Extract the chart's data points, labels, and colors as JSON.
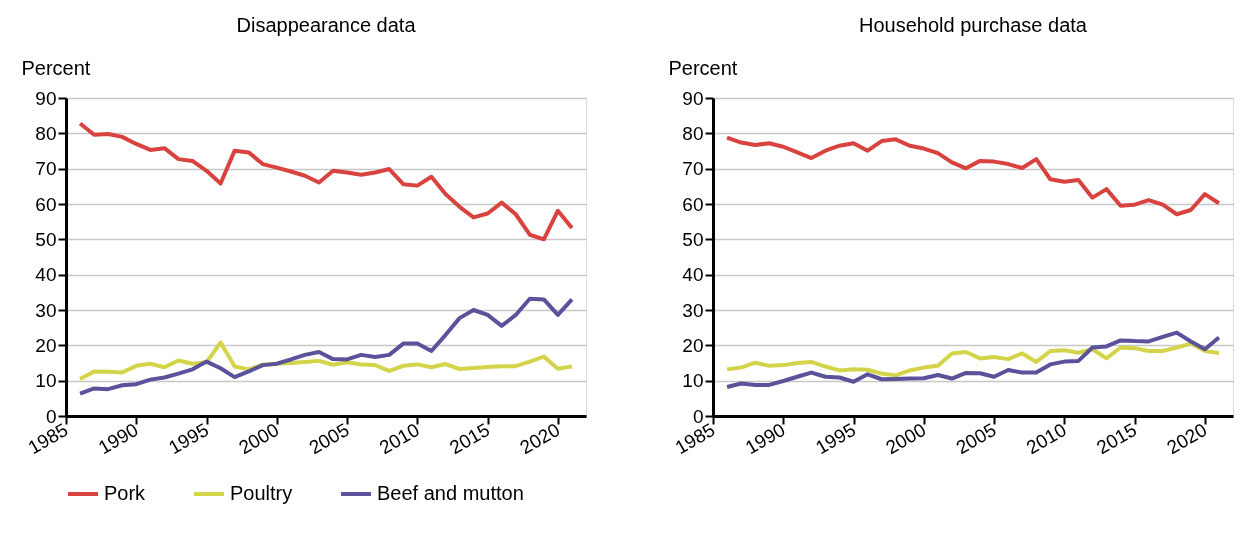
{
  "chart_data": [
    {
      "type": "line",
      "title": "Disappearance data",
      "ylabel": "Percent",
      "legend": "bottom",
      "grid": "y",
      "x": [
        1986,
        1987,
        1988,
        1989,
        1990,
        1991,
        1992,
        1993,
        1994,
        1995,
        1996,
        1997,
        1998,
        1999,
        2000,
        2001,
        2002,
        2003,
        2004,
        2005,
        2006,
        2007,
        2008,
        2009,
        2010,
        2011,
        2012,
        2013,
        2014,
        2015,
        2016,
        2017,
        2018,
        2019,
        2020,
        2021
      ],
      "xlim": [
        1985,
        2022
      ],
      "xticks": [
        1985,
        1990,
        1995,
        2000,
        2005,
        2010,
        2015,
        2020
      ],
      "ylim": [
        0,
        90
      ],
      "yticks": [
        0,
        10,
        20,
        30,
        40,
        50,
        60,
        70,
        80,
        90
      ],
      "series": [
        {
          "name": "Pork",
          "color": "#d9433f",
          "values": [
            82.8,
            79.6,
            79.8,
            79,
            77,
            75.3,
            75.8,
            72.7,
            72.2,
            69.4,
            65.8,
            75.1,
            74.6,
            71.3,
            70.3,
            69.2,
            68,
            66.1,
            69.4,
            68.9,
            68.3,
            68.9,
            69.9,
            65.6,
            65.2,
            67.7,
            62.8,
            59.2,
            56.2,
            57.3,
            60.4,
            57.1,
            51.3,
            50,
            58.1,
            53.2
          ]
        },
        {
          "name": "Poultry",
          "color": "#d4d44a",
          "values": [
            10.5,
            12.6,
            12.5,
            12.3,
            14.2,
            14.8,
            13.8,
            15.7,
            14.8,
            15.2,
            20.8,
            14,
            13.2,
            14.5,
            14.8,
            15,
            15.3,
            15.6,
            14.5,
            15.2,
            14.6,
            14.4,
            12.8,
            14.2,
            14.6,
            13.8,
            14.7,
            13.3,
            13.6,
            13.9,
            14.1,
            14.1,
            15.4,
            16.8,
            13.4,
            14
          ]
        },
        {
          "name": "Beef and mutton",
          "color": "#5a529a",
          "values": [
            6.3,
            7.8,
            7.6,
            8.7,
            9,
            10.3,
            10.9,
            12,
            13.2,
            15.4,
            13.5,
            11,
            12.6,
            14.4,
            14.8,
            16,
            17.3,
            18.1,
            16.1,
            16,
            17.3,
            16.7,
            17.3,
            20.5,
            20.5,
            18.4,
            22.9,
            27.7,
            30,
            28.6,
            25.5,
            28.6,
            33.2,
            33,
            28.6,
            33
          ]
        }
      ]
    },
    {
      "type": "line",
      "title": "Household purchase data",
      "ylabel": "Percent",
      "legend": "bottom",
      "grid": "y",
      "x": [
        1986,
        1987,
        1988,
        1989,
        1990,
        1991,
        1992,
        1993,
        1994,
        1995,
        1996,
        1997,
        1998,
        1999,
        2000,
        2001,
        2002,
        2003,
        2004,
        2005,
        2006,
        2007,
        2008,
        2009,
        2010,
        2011,
        2012,
        2013,
        2014,
        2015,
        2016,
        2017,
        2018,
        2019,
        2020,
        2021
      ],
      "xlim": [
        1985,
        2022
      ],
      "xticks": [
        1985,
        1990,
        1995,
        2000,
        2005,
        2010,
        2015,
        2020
      ],
      "ylim": [
        0,
        90
      ],
      "yticks": [
        0,
        10,
        20,
        30,
        40,
        50,
        60,
        70,
        80,
        90
      ],
      "series": [
        {
          "name": "Pork",
          "color": "#d9433f",
          "values": [
            78.8,
            77.4,
            76.7,
            77.2,
            76.2,
            74.6,
            73,
            75.1,
            76.5,
            77.2,
            75.1,
            77.8,
            78.3,
            76.5,
            75.7,
            74.4,
            71.8,
            70.1,
            72.2,
            72,
            71.3,
            70.2,
            72.7,
            67,
            66.3,
            66.8,
            61.8,
            64.2,
            59.5,
            59.8,
            61.1,
            59.8,
            57.1,
            58.3,
            62.8,
            60.2
          ]
        },
        {
          "name": "Poultry",
          "color": "#d4d44a",
          "values": [
            13.2,
            13.7,
            15.1,
            14.2,
            14.4,
            15,
            15.3,
            14,
            12.9,
            13.2,
            13.1,
            12,
            11.5,
            12.9,
            13.7,
            14.2,
            17.7,
            18.1,
            16.3,
            16.7,
            16.1,
            17.7,
            15.3,
            18.4,
            18.6,
            17.9,
            18.9,
            16.3,
            19.4,
            19.2,
            18.4,
            18.4,
            19.4,
            20.5,
            18.4,
            17.8
          ]
        },
        {
          "name": "Beef and mutton",
          "color": "#5a529a",
          "values": [
            8.2,
            9.2,
            8.8,
            8.8,
            9.9,
            11.1,
            12.3,
            11.1,
            10.9,
            9.7,
            11.8,
            10.4,
            10.5,
            10.6,
            10.7,
            11.6,
            10.6,
            12.2,
            12.1,
            11.1,
            13,
            12.3,
            12.3,
            14.6,
            15.4,
            15.6,
            19.4,
            19.7,
            21.4,
            21.2,
            21.1,
            22.4,
            23.6,
            21.1,
            18.9,
            22.2
          ]
        }
      ]
    }
  ]
}
